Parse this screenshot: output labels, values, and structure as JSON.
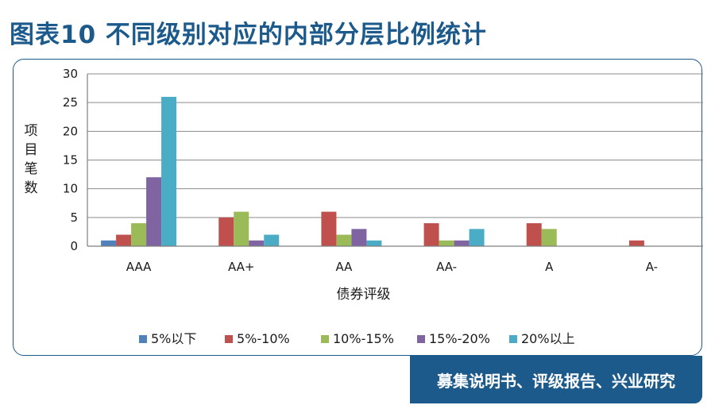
{
  "title": "图表10  不同级别对应的内部分层比例统计",
  "footer": "募集说明书、评级报告、兴业研究",
  "chart_data": {
    "type": "bar",
    "categories": [
      "AAA",
      "AA+",
      "AA",
      "AA-",
      "A",
      "A-"
    ],
    "xlabel": "债券评级",
    "ylabel": "项目笔数",
    "ylim": [
      0,
      30
    ],
    "yticks": [
      0,
      5,
      10,
      15,
      20,
      25,
      30
    ],
    "grid": true,
    "legend_position": "bottom",
    "series": [
      {
        "name": "5%以下",
        "color": "#4f81bd",
        "values": [
          1,
          0,
          0,
          0,
          0,
          0
        ]
      },
      {
        "name": "5%-10%",
        "color": "#c0504d",
        "values": [
          2,
          5,
          6,
          4,
          4,
          1
        ]
      },
      {
        "name": "10%-15%",
        "color": "#9bbb59",
        "values": [
          4,
          6,
          2,
          1,
          3,
          0
        ]
      },
      {
        "name": "15%-20%",
        "color": "#8064a2",
        "values": [
          12,
          1,
          3,
          1,
          0,
          0
        ]
      },
      {
        "name": "20%以上",
        "color": "#4bacc6",
        "values": [
          26,
          2,
          1,
          3,
          0,
          0
        ]
      }
    ]
  }
}
